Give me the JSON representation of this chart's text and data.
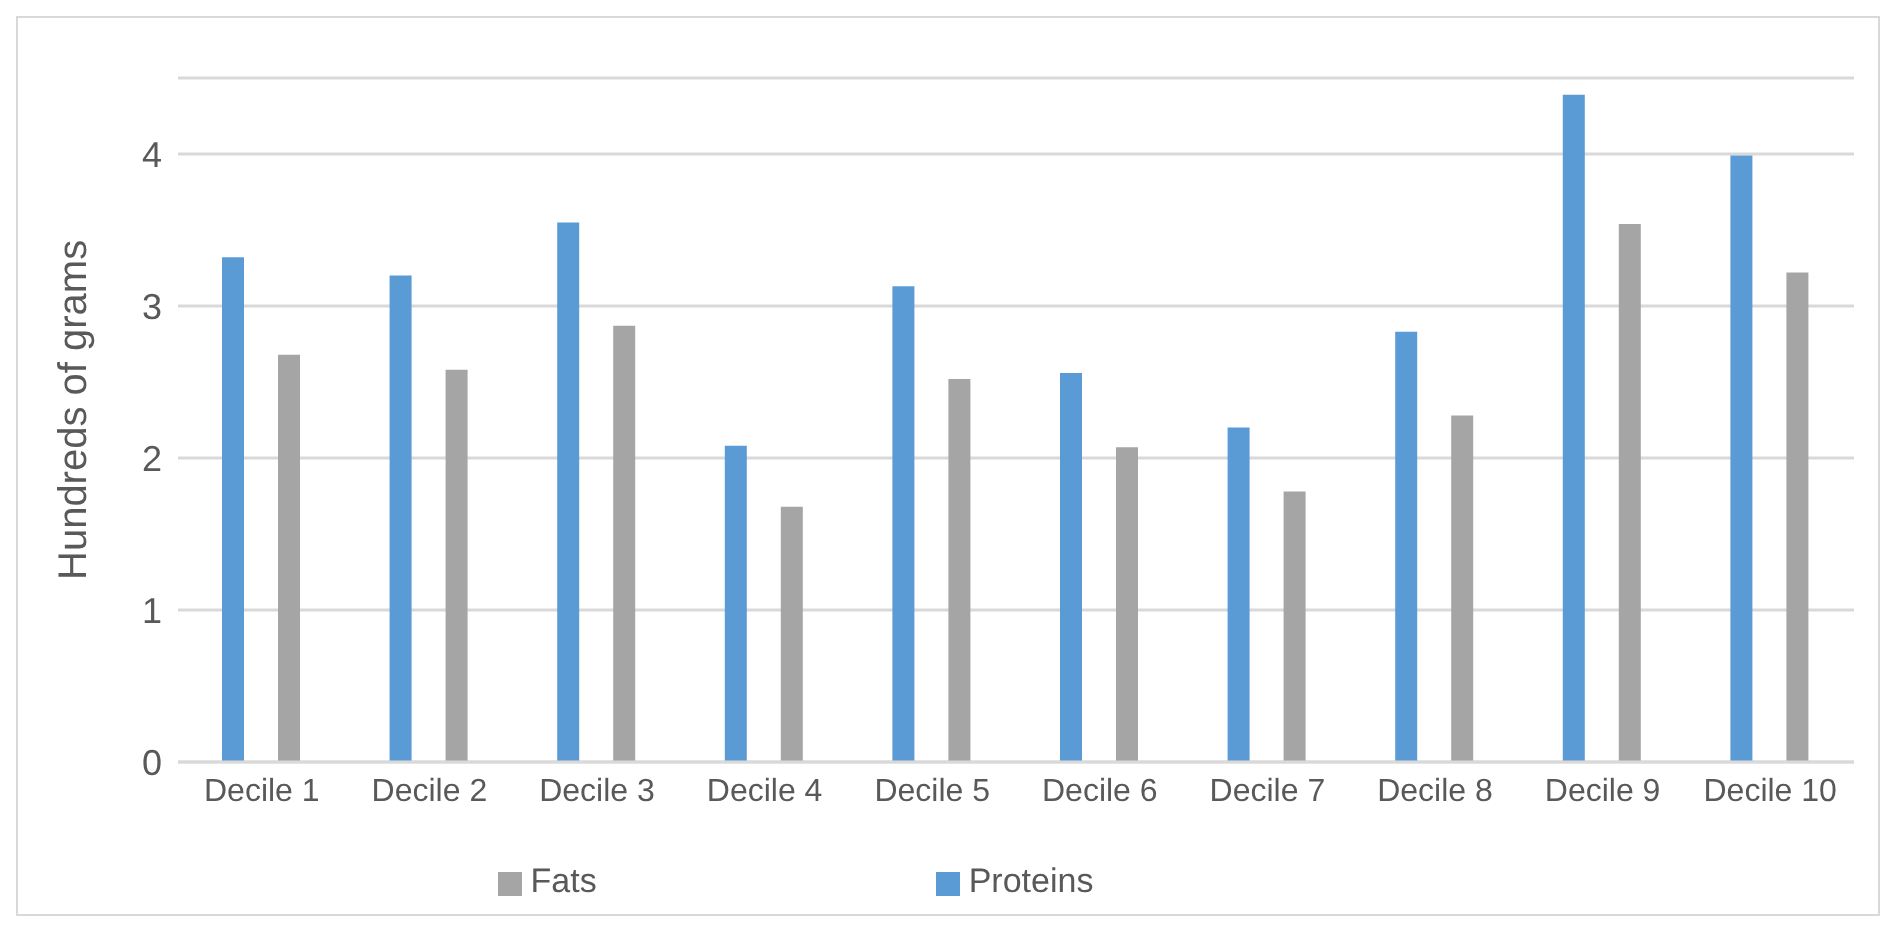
{
  "chart_data": {
    "type": "bar",
    "ylabel": "Hundreds of grams",
    "categories": [
      "Decile 1",
      "Decile 2",
      "Decile 3",
      "Decile 4",
      "Decile 5",
      "Decile 6",
      "Decile 7",
      "Decile 8",
      "Decile 9",
      "Decile 10"
    ],
    "series": [
      {
        "name": "Proteins",
        "color": "#5b9bd5",
        "values": [
          3.32,
          3.2,
          3.55,
          2.08,
          3.13,
          2.56,
          2.2,
          2.83,
          4.39,
          3.99
        ]
      },
      {
        "name": "Fats",
        "color": "#a5a5a5",
        "values": [
          2.68,
          2.58,
          2.87,
          1.68,
          2.52,
          2.07,
          1.78,
          2.28,
          3.54,
          3.22
        ]
      }
    ],
    "ylim": [
      0,
      4.5
    ],
    "yticks": [
      0,
      1,
      2,
      3,
      4
    ],
    "grid": "y",
    "legend": "bottom"
  }
}
